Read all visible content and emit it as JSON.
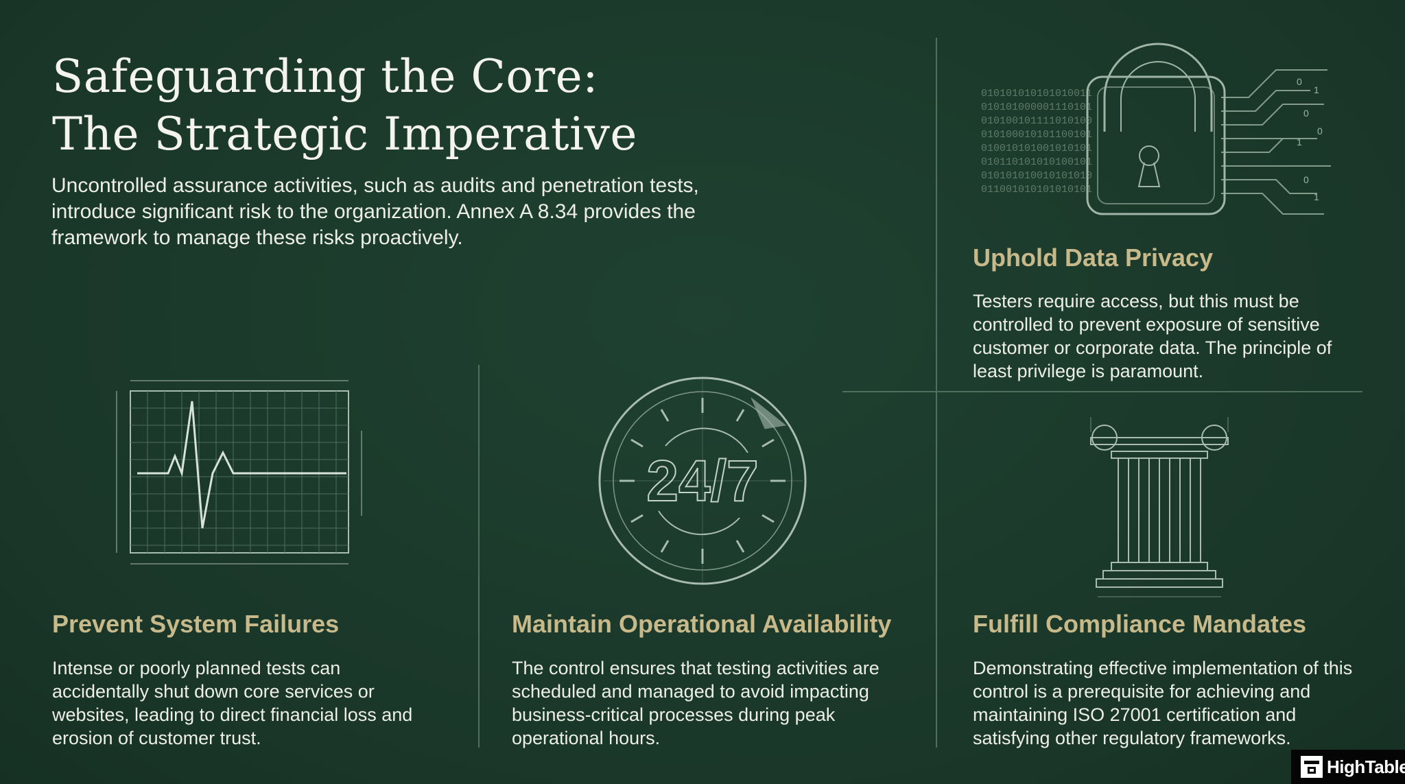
{
  "header": {
    "title_line1": "Safeguarding the Core:",
    "title_line2": "The Strategic Imperative",
    "intro": "Uncontrolled assurance activities, such as audits and penetration tests, introduce significant risk to the organization. Annex A 8.34 provides the framework to manage these risks proactively."
  },
  "sections": [
    {
      "heading": "Uphold Data Privacy",
      "body": "Testers require access, but this must be controlled to prevent exposure of sensitive customer or corporate data. The principle of least privilege is paramount.",
      "icon": "padlock-icon"
    },
    {
      "heading": "Prevent System Failures",
      "body": "Intense or poorly planned tests can accidentally shut down core services or websites, leading to direct financial loss and erosion of customer trust.",
      "icon": "heartbeat-monitor-icon"
    },
    {
      "heading": "Maintain Operational Availability",
      "body": "The control ensures that testing activities are scheduled and managed to avoid impacting business-critical processes during peak operational hours.",
      "icon": "clock-24-7-icon",
      "icon_label": "24/7"
    },
    {
      "heading": "Fulfill Compliance Mandates",
      "body": "Demonstrating effective implementation of this control is a prerequisite for achieving and maintaining ISO 27001 certification and satisfying other regulatory frameworks.",
      "icon": "pillar-icon"
    }
  ],
  "brand": {
    "name": "HighTable"
  },
  "colors": {
    "background": "#1b3a2b",
    "heading_accent": "#c8b98a",
    "line": "#50705f"
  }
}
